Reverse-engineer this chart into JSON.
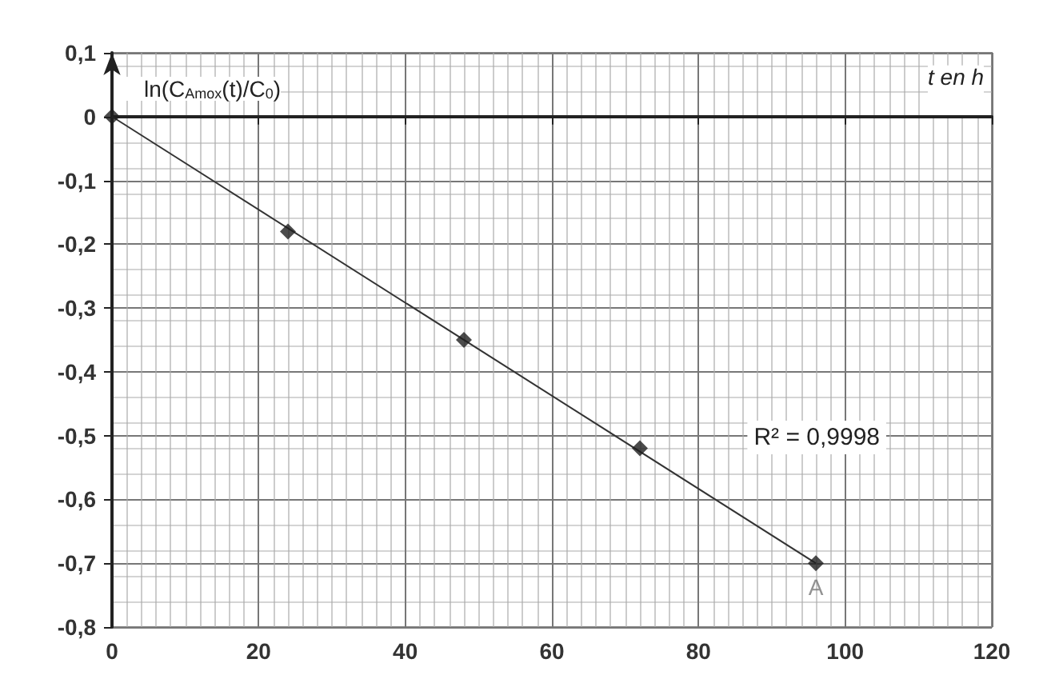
{
  "chart_data": {
    "type": "scatter",
    "xlabel": "t en h",
    "ylabel": "ln(C$_{Amox}$(t)/C$_{0}$)",
    "series": [
      {
        "color": "#1e1e1e",
        "x": [
          0,
          24,
          48,
          72,
          96
        ],
        "values": [
          0,
          -0.18,
          -0.35,
          -0.52,
          -0.7
        ]
      },
      {
        "type": "line",
        "marker": "none",
        "color": "#333333",
        "x": [
          0,
          96
        ],
        "values": [
          0,
          -0.7
        ]
      }
    ],
    "marker": "diamond",
    "xlim": [
      0,
      120
    ],
    "xticks": [
      0,
      20,
      40,
      60,
      80,
      100,
      120
    ],
    "ylim": [
      -0.8,
      0.1
    ],
    "yticks": [
      {
        "value": 0.1,
        "label": "0,1"
      },
      {
        "value": 0,
        "label": "0"
      },
      {
        "value": -0.1,
        "label": "-0,1"
      },
      {
        "value": -0.2,
        "label": "-0,2"
      },
      {
        "value": -0.3,
        "label": "-0,3"
      },
      {
        "value": -0.4,
        "label": "-0,4"
      },
      {
        "value": -0.5,
        "label": "-0,5"
      },
      {
        "value": -0.6,
        "label": "-0,6"
      },
      {
        "value": -0.7,
        "label": "-0,7"
      },
      {
        "value": -0.8,
        "label": "-0,8"
      }
    ],
    "grid": true,
    "annotations": [
      "R² = 0,9998",
      {
        "text": "A",
        "x": 96,
        "y": -0.7
      }
    ]
  }
}
